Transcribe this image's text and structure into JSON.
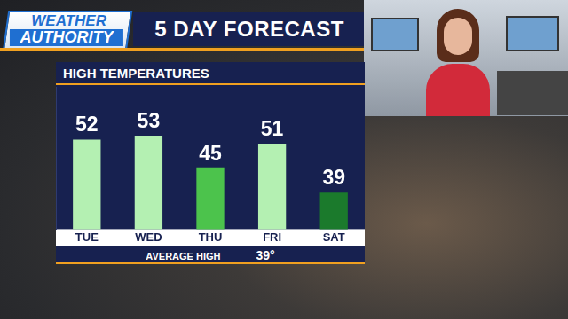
{
  "header": {
    "logo": [
      "WEATHER",
      "AUTHORITY"
    ],
    "title": "5 DAY FORECAST"
  },
  "chart_data": {
    "type": "bar",
    "title": "HIGH TEMPERATURES",
    "categories": [
      "TUE",
      "WED",
      "THU",
      "FRI",
      "SAT"
    ],
    "values": [
      52,
      53,
      45,
      51,
      39
    ],
    "colors": [
      "#b4f0b2",
      "#b4f0b2",
      "#4cc34c",
      "#b4f0b2",
      "#1b7a2c"
    ],
    "ylim": [
      30,
      65
    ],
    "grid": false,
    "data_labels": true,
    "tick_labels": "x",
    "annotations": [
      "AVERAGE HIGH",
      "39°"
    ]
  }
}
